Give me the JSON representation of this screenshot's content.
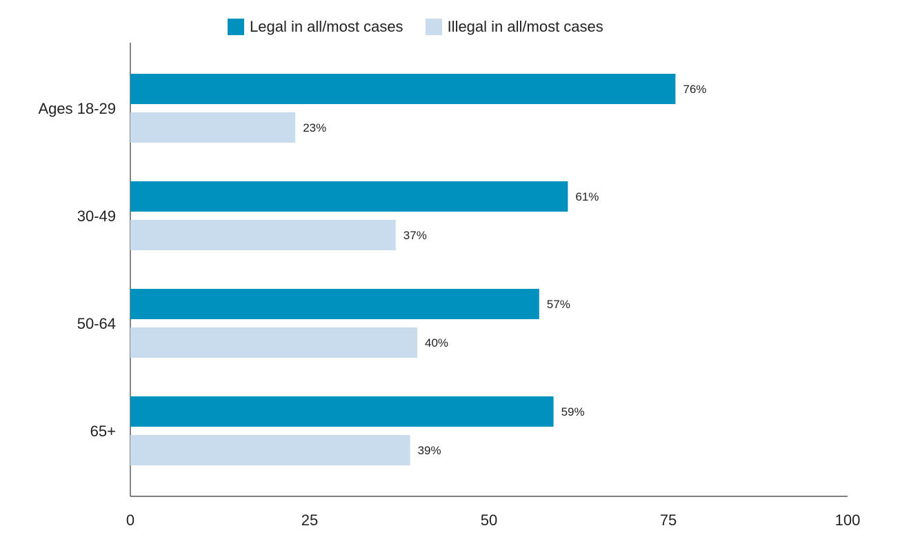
{
  "chart_data": {
    "type": "bar",
    "orientation": "horizontal",
    "title": "",
    "xlabel": "",
    "ylabel": "",
    "categories": [
      "Ages 18-29",
      "30-49",
      "50-64",
      "65+"
    ],
    "series": [
      {
        "name": "Legal in all/most cases",
        "values": [
          76,
          61,
          57,
          59
        ],
        "labels": [
          "76%",
          "61%",
          "57%",
          "59%"
        ],
        "color": "#0091be"
      },
      {
        "name": "Illegal in all/most cases",
        "values": [
          23,
          37,
          40,
          39
        ],
        "labels": [
          "23%",
          "37%",
          "40%",
          "39%"
        ],
        "color": "#c9dcee"
      }
    ],
    "xlim": [
      0,
      100
    ],
    "xticks": [
      0,
      25,
      50,
      75,
      100
    ],
    "xtick_labels": [
      "0",
      "25",
      "50",
      "75",
      "100"
    ],
    "grid": false,
    "legend_position": "top"
  }
}
